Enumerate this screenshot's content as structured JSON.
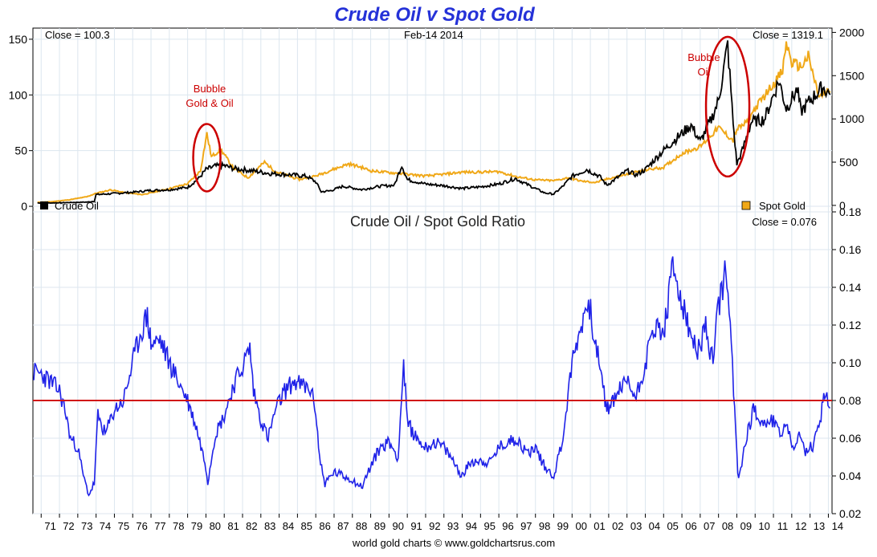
{
  "chart_data": [
    {
      "type": "line",
      "title": "Crude Oil v Spot Gold",
      "date_label": "Feb-14  2014",
      "close_left_text": "Close = 100.3",
      "close_right_text": "Close = 1319.1",
      "left_axis": {
        "ylim": [
          -5,
          160
        ],
        "ticks": [
          0,
          50,
          100,
          150
        ]
      },
      "right_axis": {
        "ylim": [
          -75,
          2050
        ],
        "ticks": [
          0,
          500,
          1000,
          1500,
          2000
        ]
      },
      "grid": true,
      "legend": [
        {
          "label": "Crude Oil",
          "color": "#000000",
          "placement": "bottom-left"
        },
        {
          "label": "Spot Gold",
          "color": "#f0a818",
          "placement": "bottom-right"
        }
      ],
      "annotations": [
        {
          "lines": [
            "Bubble",
            "Gold & Oil"
          ],
          "x": 1980.05,
          "y_left": 48,
          "color": "#cc0000"
        },
        {
          "lines": [
            "Bubble",
            "Oil"
          ],
          "x": 2008.5,
          "y_left": 88,
          "color": "#cc0000"
        }
      ],
      "series": [
        {
          "name": "Crude Oil",
          "axis": "left",
          "color": "#000000",
          "points": [
            [
              1970.8,
              3
            ],
            [
              1971.5,
              3
            ],
            [
              1972.5,
              3.4
            ],
            [
              1973.5,
              3.8
            ],
            [
              1973.9,
              4.5
            ],
            [
              1974.0,
              10.5
            ],
            [
              1975,
              11.5
            ],
            [
              1976,
              12.6
            ],
            [
              1977,
              14.3
            ],
            [
              1978,
              14.9
            ],
            [
              1979,
              17
            ],
            [
              1979.6,
              25
            ],
            [
              1980.0,
              33
            ],
            [
              1980.5,
              36
            ],
            [
              1981.0,
              36.5
            ],
            [
              1981.5,
              34
            ],
            [
              1982.5,
              32
            ],
            [
              1983.5,
              29.5
            ],
            [
              1984.5,
              28.5
            ],
            [
              1985.5,
              27
            ],
            [
              1986.0,
              22
            ],
            [
              1986.3,
              13
            ],
            [
              1986.8,
              14
            ],
            [
              1987.5,
              18
            ],
            [
              1988.5,
              15
            ],
            [
              1989.5,
              18
            ],
            [
              1990.3,
              19
            ],
            [
              1990.7,
              37
            ],
            [
              1991.0,
              24
            ],
            [
              1992,
              20
            ],
            [
              1993,
              18.5
            ],
            [
              1994,
              16
            ],
            [
              1995,
              17.5
            ],
            [
              1996,
              20
            ],
            [
              1996.9,
              25
            ],
            [
              1997.5,
              20
            ],
            [
              1998.5,
              12
            ],
            [
              1999.0,
              11
            ],
            [
              1999.5,
              18
            ],
            [
              2000.0,
              27
            ],
            [
              2000.8,
              33
            ],
            [
              2001.5,
              27
            ],
            [
              2001.9,
              19
            ],
            [
              2002.5,
              26
            ],
            [
              2003.0,
              32
            ],
            [
              2003.5,
              28
            ],
            [
              2004.0,
              33
            ],
            [
              2004.8,
              47
            ],
            [
              2005.5,
              58
            ],
            [
              2006.5,
              73
            ],
            [
              2007.0,
              58
            ],
            [
              2007.6,
              78
            ],
            [
              2008.0,
              95
            ],
            [
              2008.5,
              145
            ],
            [
              2008.8,
              75
            ],
            [
              2009.0,
              38
            ],
            [
              2009.3,
              50
            ],
            [
              2009.8,
              76
            ],
            [
              2010.5,
              78
            ],
            [
              2011.3,
              113
            ],
            [
              2011.7,
              88
            ],
            [
              2012.3,
              105
            ],
            [
              2012.5,
              85
            ],
            [
              2013.0,
              95
            ],
            [
              2013.7,
              107
            ],
            [
              2014.1,
              100.3
            ]
          ]
        },
        {
          "name": "Spot Gold",
          "axis": "right",
          "color": "#f0a818",
          "points": [
            [
              1970.8,
              36
            ],
            [
              1971.5,
              41
            ],
            [
              1972.5,
              64
            ],
            [
              1973.5,
              100
            ],
            [
              1974.0,
              140
            ],
            [
              1974.8,
              180
            ],
            [
              1975.5,
              150
            ],
            [
              1976.5,
              125
            ],
            [
              1977,
              145
            ],
            [
              1978,
              195
            ],
            [
              1979,
              250
            ],
            [
              1979.7,
              400
            ],
            [
              1980.05,
              830
            ],
            [
              1980.3,
              560
            ],
            [
              1980.8,
              650
            ],
            [
              1981.5,
              430
            ],
            [
              1982.3,
              320
            ],
            [
              1983.2,
              500
            ],
            [
              1983.8,
              390
            ],
            [
              1984.8,
              320
            ],
            [
              1985.1,
              300
            ],
            [
              1986.0,
              340
            ],
            [
              1987.0,
              420
            ],
            [
              1987.8,
              480
            ],
            [
              1988.5,
              440
            ],
            [
              1989.0,
              400
            ],
            [
              1990.0,
              380
            ],
            [
              1991,
              360
            ],
            [
              1992,
              340
            ],
            [
              1993,
              360
            ],
            [
              1994,
              385
            ],
            [
              1995,
              385
            ],
            [
              1996,
              390
            ],
            [
              1997,
              330
            ],
            [
              1998,
              295
            ],
            [
              1999,
              285
            ],
            [
              1999.8,
              320
            ],
            [
              2000.5,
              280
            ],
            [
              2001.3,
              265
            ],
            [
              2002,
              310
            ],
            [
              2003,
              360
            ],
            [
              2004,
              410
            ],
            [
              2005,
              440
            ],
            [
              2006,
              600
            ],
            [
              2007,
              680
            ],
            [
              2008.0,
              900
            ],
            [
              2008.8,
              750
            ],
            [
              2009.0,
              880
            ],
            [
              2009.5,
              950
            ],
            [
              2010.0,
              1120
            ],
            [
              2010.9,
              1380
            ],
            [
              2011.5,
              1550
            ],
            [
              2011.7,
              1880
            ],
            [
              2012.0,
              1650
            ],
            [
              2012.5,
              1600
            ],
            [
              2012.9,
              1720
            ],
            [
              2013.3,
              1400
            ],
            [
              2013.5,
              1250
            ],
            [
              2014.1,
              1319.1
            ]
          ]
        }
      ]
    },
    {
      "type": "line",
      "title": "Crude Oil  /  Spot Gold Ratio",
      "close_text": "Close = 0.076",
      "ylim": [
        0.02,
        0.18
      ],
      "yticks": [
        0.02,
        0.04,
        0.06,
        0.08,
        0.1,
        0.12,
        0.14,
        0.16,
        0.18
      ],
      "ytick_labels": [
        "0.02",
        "0.04",
        "0.06",
        "0.08",
        "0.10",
        "0.12",
        "0.14",
        "0.16",
        "0.18"
      ],
      "xlim": [
        1970.55,
        2014.2
      ],
      "xticks": [
        "71",
        "72",
        "73",
        "74",
        "75",
        "76",
        "77",
        "78",
        "79",
        "80",
        "81",
        "82",
        "83",
        "84",
        "85",
        "86",
        "87",
        "88",
        "89",
        "90",
        "91",
        "92",
        "93",
        "94",
        "95",
        "96",
        "97",
        "98",
        "99",
        "00",
        "01",
        "02",
        "03",
        "04",
        "05",
        "06",
        "07",
        "08",
        "09",
        "10",
        "11",
        "12",
        "13",
        "14"
      ],
      "grid": true,
      "reference_line": {
        "y": 0.08,
        "color": "#d11414"
      },
      "series": [
        {
          "name": "Crude Oil / Spot Gold Ratio",
          "color": "#1f22e8",
          "points": [
            [
              1970.6,
              0.095
            ],
            [
              1971.0,
              0.094
            ],
            [
              1971.5,
              0.09
            ],
            [
              1972.0,
              0.085
            ],
            [
              1972.3,
              0.075
            ],
            [
              1972.6,
              0.06
            ],
            [
              1973.0,
              0.055
            ],
            [
              1973.3,
              0.04
            ],
            [
              1973.6,
              0.03
            ],
            [
              1973.9,
              0.036
            ],
            [
              1974.1,
              0.072
            ],
            [
              1974.5,
              0.062
            ],
            [
              1975.0,
              0.075
            ],
            [
              1975.5,
              0.08
            ],
            [
              1976.0,
              0.1
            ],
            [
              1976.4,
              0.115
            ],
            [
              1976.8,
              0.125
            ],
            [
              1977.0,
              0.11
            ],
            [
              1977.5,
              0.112
            ],
            [
              1978.0,
              0.1
            ],
            [
              1978.5,
              0.09
            ],
            [
              1979.0,
              0.08
            ],
            [
              1979.5,
              0.065
            ],
            [
              1980.0,
              0.045
            ],
            [
              1980.1,
              0.037
            ],
            [
              1980.5,
              0.062
            ],
            [
              1981.0,
              0.072
            ],
            [
              1981.5,
              0.088
            ],
            [
              1982.0,
              0.098
            ],
            [
              1982.4,
              0.108
            ],
            [
              1982.6,
              0.085
            ],
            [
              1983.0,
              0.07
            ],
            [
              1983.4,
              0.06
            ],
            [
              1983.8,
              0.075
            ],
            [
              1984.3,
              0.085
            ],
            [
              1984.8,
              0.09
            ],
            [
              1985.2,
              0.088
            ],
            [
              1985.7,
              0.086
            ],
            [
              1986.0,
              0.075
            ],
            [
              1986.2,
              0.05
            ],
            [
              1986.5,
              0.036
            ],
            [
              1987.0,
              0.042
            ],
            [
              1987.5,
              0.04
            ],
            [
              1988.0,
              0.038
            ],
            [
              1988.5,
              0.034
            ],
            [
              1989.0,
              0.045
            ],
            [
              1989.5,
              0.055
            ],
            [
              1990.0,
              0.058
            ],
            [
              1990.5,
              0.05
            ],
            [
              1990.8,
              0.1
            ],
            [
              1991.0,
              0.068
            ],
            [
              1991.5,
              0.06
            ],
            [
              1992.0,
              0.055
            ],
            [
              1992.5,
              0.058
            ],
            [
              1993.0,
              0.055
            ],
            [
              1993.5,
              0.048
            ],
            [
              1994.0,
              0.04
            ],
            [
              1994.5,
              0.048
            ],
            [
              1995.0,
              0.048
            ],
            [
              1995.5,
              0.047
            ],
            [
              1996.0,
              0.055
            ],
            [
              1996.5,
              0.058
            ],
            [
              1997.0,
              0.06
            ],
            [
              1997.5,
              0.052
            ],
            [
              1998.0,
              0.055
            ],
            [
              1998.5,
              0.045
            ],
            [
              1999.0,
              0.04
            ],
            [
              1999.5,
              0.06
            ],
            [
              2000.0,
              0.1
            ],
            [
              2000.5,
              0.12
            ],
            [
              2000.9,
              0.133
            ],
            [
              2001.3,
              0.11
            ],
            [
              2001.8,
              0.08
            ],
            [
              2002.0,
              0.075
            ],
            [
              2002.5,
              0.085
            ],
            [
              2003.0,
              0.09
            ],
            [
              2003.5,
              0.082
            ],
            [
              2004.0,
              0.1
            ],
            [
              2004.5,
              0.12
            ],
            [
              2005.0,
              0.115
            ],
            [
              2005.5,
              0.15
            ],
            [
              2005.8,
              0.14
            ],
            [
              2006.3,
              0.12
            ],
            [
              2006.8,
              0.105
            ],
            [
              2007.3,
              0.118
            ],
            [
              2007.7,
              0.1
            ],
            [
              2008.0,
              0.13
            ],
            [
              2008.4,
              0.15
            ],
            [
              2008.7,
              0.11
            ],
            [
              2009.0,
              0.05
            ],
            [
              2009.1,
              0.038
            ],
            [
              2009.5,
              0.06
            ],
            [
              2009.9,
              0.075
            ],
            [
              2010.5,
              0.068
            ],
            [
              2011.0,
              0.07
            ],
            [
              2011.3,
              0.062
            ],
            [
              2011.7,
              0.068
            ],
            [
              2012.0,
              0.055
            ],
            [
              2012.4,
              0.06
            ],
            [
              2012.8,
              0.052
            ],
            [
              2013.2,
              0.057
            ],
            [
              2013.6,
              0.072
            ],
            [
              2013.8,
              0.085
            ],
            [
              2014.1,
              0.076
            ]
          ]
        }
      ]
    }
  ],
  "source_credit": "world gold charts  ©  www.goldchartsrus.com"
}
